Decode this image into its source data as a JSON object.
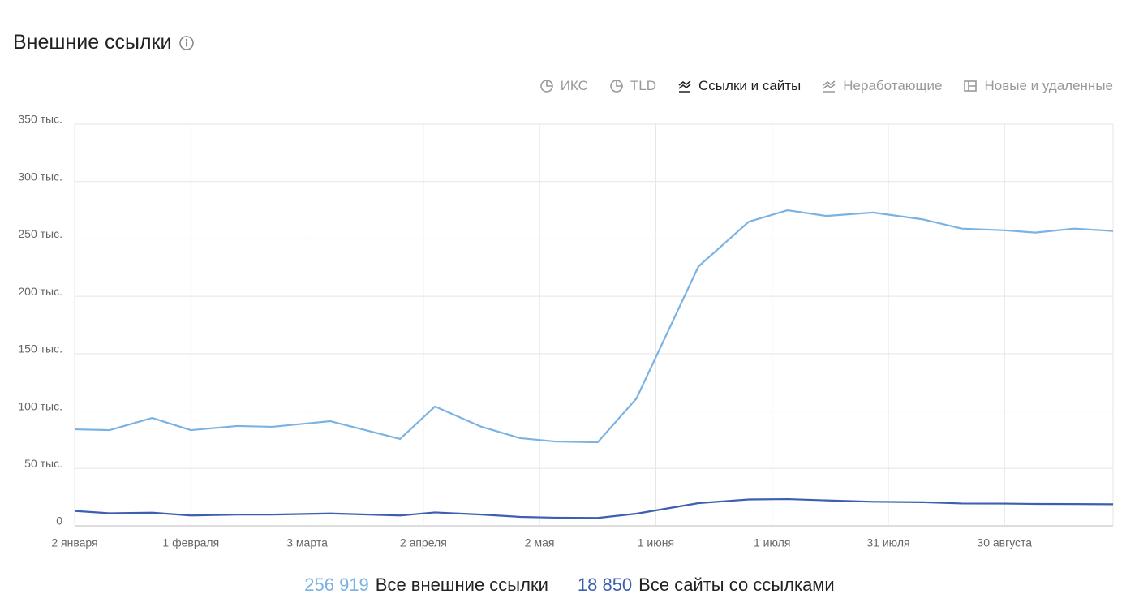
{
  "header": {
    "title": "Внешние ссылки"
  },
  "tabs": [
    "ИКС",
    "TLD",
    "Ссылки и сайты",
    "Неработающие",
    "Новые и удаленные"
  ],
  "active_tab": 2,
  "chart_data": {
    "type": "line",
    "x": [
      0,
      9,
      20,
      30,
      42,
      51,
      66,
      84,
      93,
      105,
      115,
      124,
      135,
      145,
      161,
      174,
      184,
      194,
      206,
      219,
      229,
      240,
      248,
      258,
      268
    ],
    "xlim": [
      0,
      268
    ],
    "xticks": [
      {
        "value": 0,
        "label": "2 января"
      },
      {
        "value": 30,
        "label": "1 февраля"
      },
      {
        "value": 60,
        "label": "3 марта"
      },
      {
        "value": 90,
        "label": "2 апреля"
      },
      {
        "value": 120,
        "label": "2 мая"
      },
      {
        "value": 150,
        "label": "1 июня"
      },
      {
        "value": 180,
        "label": "1 июля"
      },
      {
        "value": 210,
        "label": "31 июля"
      },
      {
        "value": 240,
        "label": "30 августа"
      }
    ],
    "ylim": [
      0,
      350000
    ],
    "yticks": [
      0,
      {
        "value": 50000,
        "label": "50 тыс."
      },
      {
        "value": 100000,
        "label": "100 тыс."
      },
      {
        "value": 150000,
        "label": "150 тыс."
      },
      {
        "value": 200000,
        "label": "200 тыс."
      },
      {
        "value": 250000,
        "label": "250 тыс."
      },
      {
        "value": 300000,
        "label": "300 тыс."
      },
      {
        "value": 350000,
        "label": "350 тыс."
      }
    ],
    "grid": true,
    "series": [
      {
        "name": "Все внешние ссылки",
        "color": "#7ab3e3",
        "values": [
          84100,
          83400,
          94000,
          83400,
          87000,
          86300,
          91200,
          75700,
          104000,
          86300,
          76400,
          73500,
          72800,
          111000,
          226000,
          265000,
          275000,
          270000,
          273000,
          267000,
          259000,
          257500,
          255500,
          259000,
          256919
        ],
        "summary": {
          "value": 256919,
          "label": "256 919"
        }
      },
      {
        "name": "Все сайты со ссылками",
        "color": "#3d5fb0",
        "values": [
          13000,
          11000,
          11500,
          9000,
          9800,
          9800,
          10800,
          9000,
          11700,
          9800,
          7800,
          7100,
          6900,
          10600,
          19800,
          23000,
          23300,
          22200,
          21000,
          20600,
          19500,
          19400,
          19100,
          19000,
          18850
        ],
        "summary": {
          "value": 18850,
          "label": "18 850"
        }
      }
    ]
  }
}
